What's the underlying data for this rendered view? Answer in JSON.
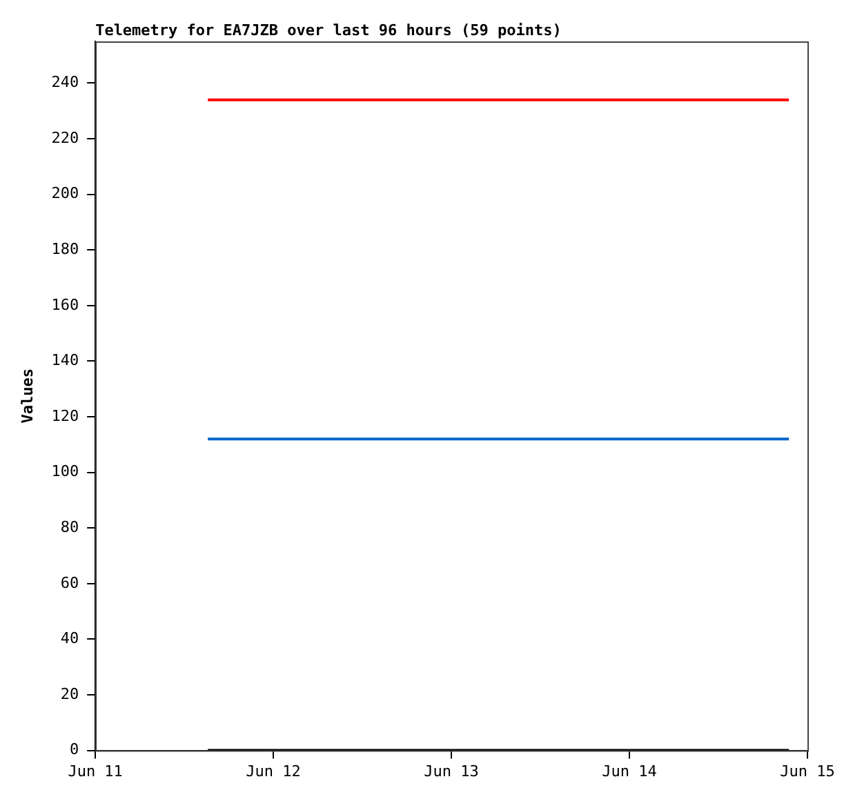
{
  "chart_data": {
    "type": "line",
    "title": "Telemetry for EA7JZB over last 96 hours (59 points)",
    "ylabel": "Values",
    "xlim": [
      "--06-11",
      "--06-15"
    ],
    "xticks": [
      {
        "value": "--06-11",
        "label": "Jun 11"
      },
      {
        "value": "--06-12",
        "label": "Jun 12"
      },
      {
        "value": "--06-13",
        "label": "Jun 13"
      },
      {
        "value": "--06-14",
        "label": "Jun 14"
      },
      {
        "value": "--06-15",
        "label": "Jun 15"
      }
    ],
    "ylim": [
      0,
      255
    ],
    "yticks": [
      0,
      20,
      40,
      60,
      80,
      100,
      120,
      140,
      160,
      180,
      200,
      220,
      240
    ],
    "grid": false,
    "legend": false,
    "marker": "none",
    "line_style": "solid",
    "series": [
      {
        "color": "#ff0000",
        "x": [
          "--06-11T15:10",
          "--06-14T21:30"
        ],
        "values": [
          234,
          234
        ]
      },
      {
        "color": "#0066cc",
        "x": [
          "--06-11T15:10",
          "--06-14T21:30"
        ],
        "values": [
          112,
          112
        ]
      },
      {
        "color": "#000000",
        "x": [
          "--06-11T15:10",
          "--06-14T21:30"
        ],
        "values": [
          0,
          0
        ]
      }
    ]
  }
}
